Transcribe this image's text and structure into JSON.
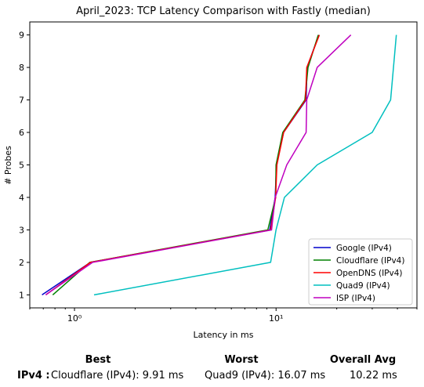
{
  "chart_data": {
    "type": "line",
    "title": "April_2023: TCP Latency Comparison with Fastly (median)",
    "xlabel": "Latency in ms",
    "ylabel": "# Probes",
    "xscale": "log",
    "xlim": [
      0.6,
      50
    ],
    "ylim": [
      0.6,
      9.4
    ],
    "xticks": [
      {
        "v": 1,
        "label": "10⁰"
      },
      {
        "v": 10,
        "label": "10¹"
      }
    ],
    "yticks": [
      1,
      2,
      3,
      4,
      5,
      6,
      7,
      8,
      9
    ],
    "legend_position": "lower right",
    "series": [
      {
        "name": "Google (IPv4)",
        "color": "#0000cc",
        "x": [
          0.69,
          1.2,
          9.3,
          9.9,
          10.05,
          10.9,
          14.1,
          14.25,
          16.3
        ],
        "y": [
          1,
          2,
          3,
          4,
          5,
          6,
          7,
          8,
          9
        ]
      },
      {
        "name": "Cloudflare (IPv4)",
        "color": "#008000",
        "x": [
          0.78,
          1.19,
          9.1,
          9.95,
          10.0,
          10.8,
          13.9,
          14.4,
          16.2
        ],
        "y": [
          1,
          2,
          3,
          4,
          5,
          6,
          7,
          8,
          9
        ]
      },
      {
        "name": "OpenDNS (IPv4)",
        "color": "#ff0000",
        "x": [
          0.72,
          1.2,
          9.4,
          9.95,
          10.1,
          10.9,
          14.0,
          14.2,
          16.4
        ],
        "y": [
          1,
          2,
          3,
          4,
          5,
          6,
          7,
          8,
          9
        ]
      },
      {
        "name": "Quad9 (IPv4)",
        "color": "#00bfbf",
        "x": [
          1.25,
          9.4,
          10.0,
          11.0,
          16.0,
          30.0,
          37.0,
          39.5
        ],
        "y": [
          1,
          2,
          3,
          4,
          5,
          6,
          7,
          9
        ]
      },
      {
        "name": "ISP (IPv4)",
        "color": "#bf00bf",
        "x": [
          0.72,
          1.23,
          9.5,
          9.9,
          11.3,
          14.1,
          14.2,
          16.0,
          23.5
        ],
        "y": [
          1,
          2,
          3,
          4,
          5,
          6,
          7,
          8,
          9
        ]
      }
    ]
  },
  "stats": {
    "best_header": "Best",
    "worst_header": "Worst",
    "avg_header": "Overall Avg",
    "protocol": "IPv4 :",
    "best": "Cloudflare (IPv4): 9.91 ms",
    "worst": "Quad9 (IPv4): 16.07 ms",
    "avg": "10.22 ms"
  }
}
